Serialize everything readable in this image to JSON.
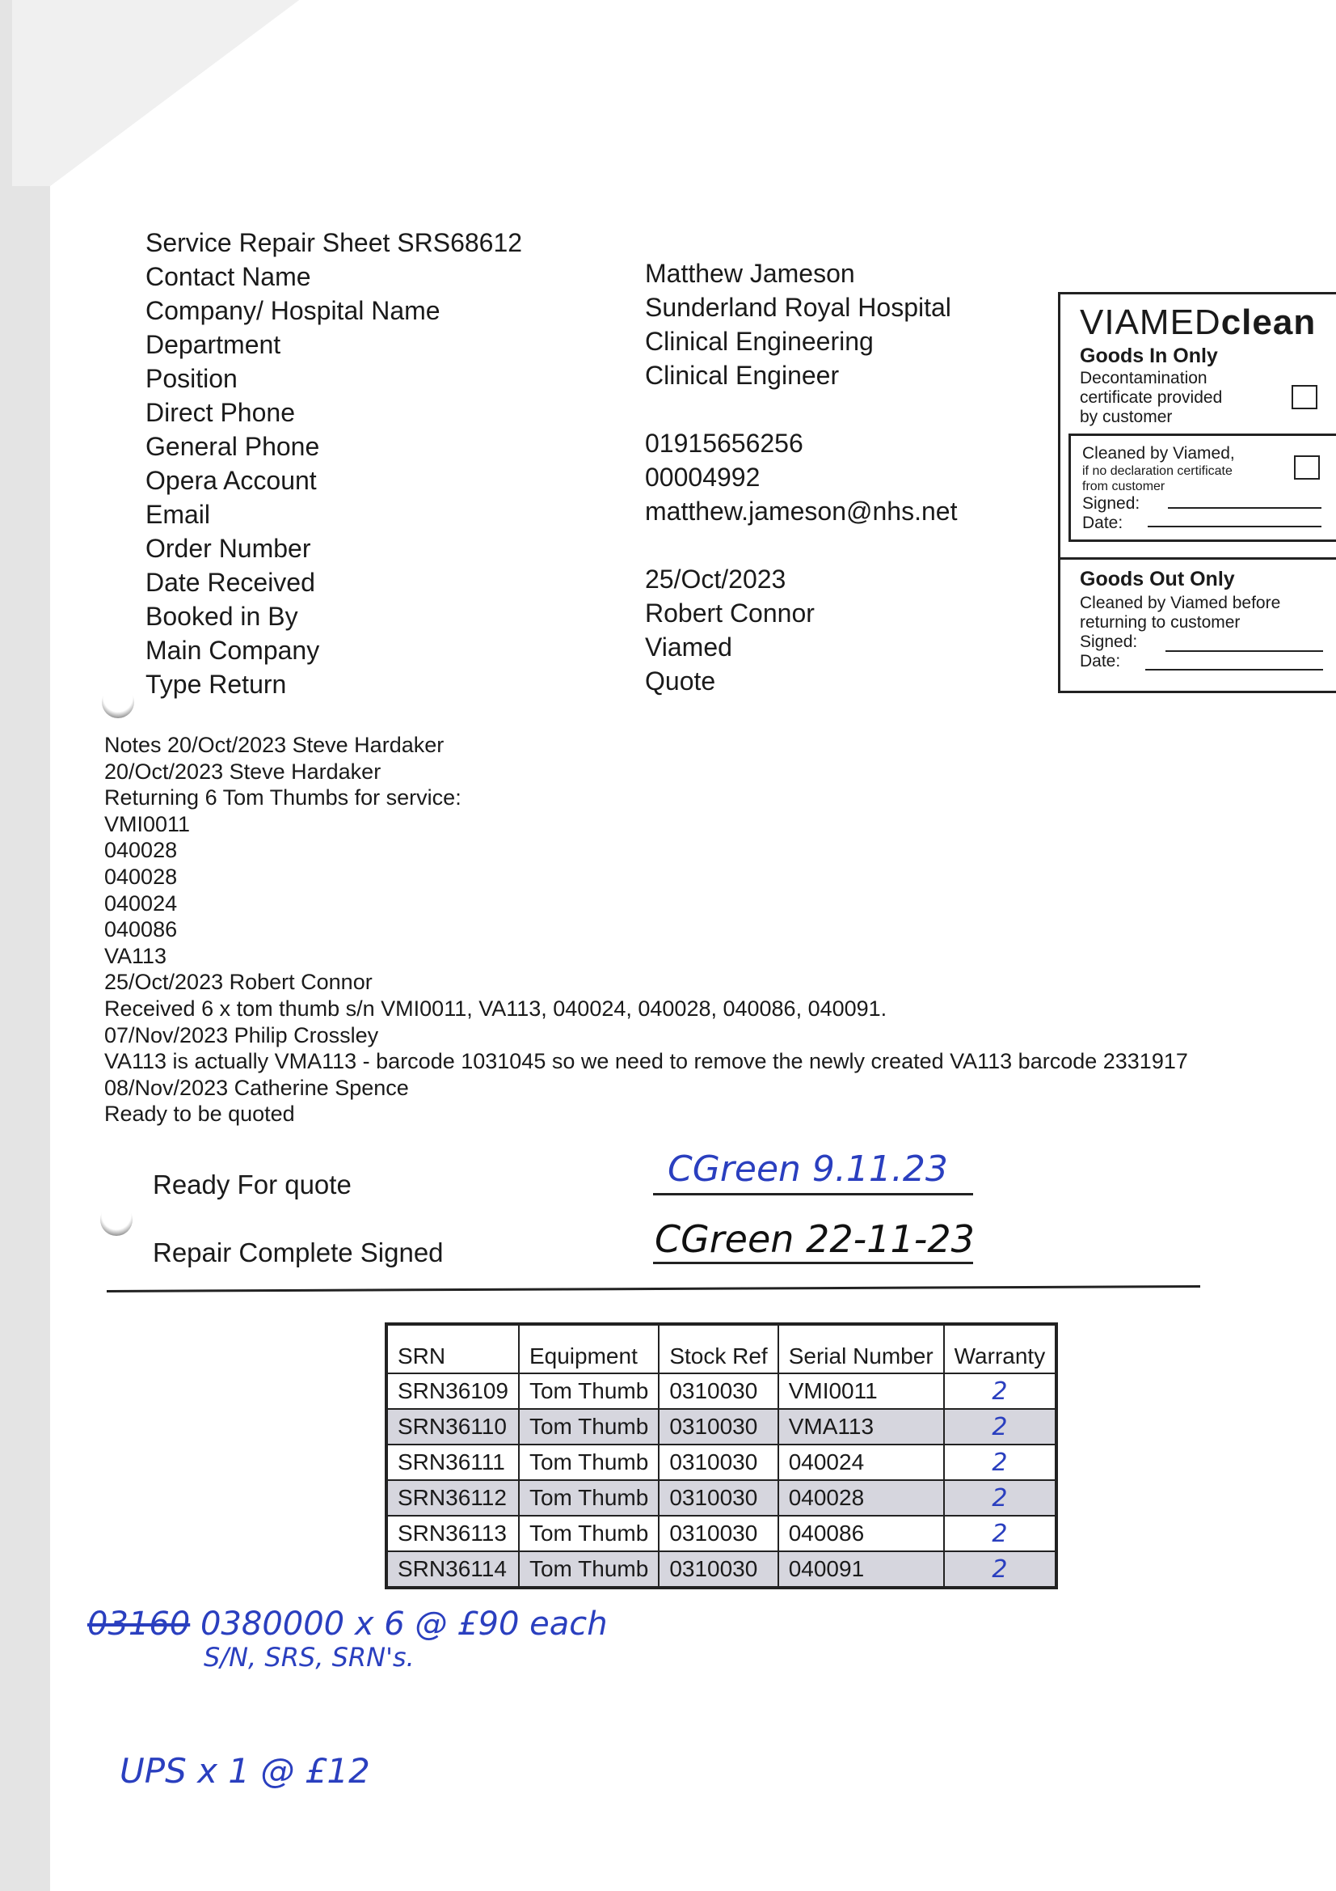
{
  "header": {
    "title": "Service Repair Sheet SRS68612"
  },
  "fields": [
    {
      "label": "Contact Name",
      "value": "Matthew Jameson"
    },
    {
      "label": "Company/ Hospital Name",
      "value": "Sunderland Royal Hospital"
    },
    {
      "label": "Department",
      "value": "Clinical Engineering"
    },
    {
      "label": "Position",
      "value": "Clinical Engineer"
    },
    {
      "label": "Direct Phone",
      "value": ""
    },
    {
      "label": "General Phone",
      "value": "01915656256"
    },
    {
      "label": "Opera Account",
      "value": "00004992"
    },
    {
      "label": "Email",
      "value": "matthew.jameson@nhs.net"
    },
    {
      "label": "Order Number",
      "value": ""
    },
    {
      "label": "Date Received",
      "value": "25/Oct/2023"
    },
    {
      "label": "Booked in By",
      "value": "Robert Connor"
    },
    {
      "label": "Main Company",
      "value": "Viamed"
    },
    {
      "label": "Type Return",
      "value": "Quote"
    }
  ],
  "clean_box": {
    "logo_light": "VIAMED",
    "logo_bold": "clean",
    "goods_in_title": "Goods In Only",
    "goods_in_text": [
      "Decontamination",
      "certificate provided",
      "by customer"
    ],
    "cleaned_line1": "Cleaned by Viamed,",
    "cleaned_line2": "if no declaration certificate",
    "cleaned_line3": "from customer",
    "signed_label": "Signed:",
    "date_label": "Date:",
    "goods_out_title": "Goods Out Only",
    "goods_out_text": [
      "Cleaned by Viamed before",
      "returning to customer"
    ],
    "signed_label_2": "Signed:",
    "date_label_2": "Date:"
  },
  "notes": [
    "Notes 20/Oct/2023 Steve Hardaker",
    "20/Oct/2023 Steve Hardaker",
    "Returning 6 Tom Thumbs for service:",
    "VMI0011",
    "040028",
    "040028",
    "040024",
    "040086",
    "VA113",
    "25/Oct/2023 Robert Connor",
    "Received 6 x tom thumb s/n VMI0011, VA113, 040024, 040028, 040086, 040091.",
    "07/Nov/2023 Philip Crossley",
    "VA113 is actually VMA113 - barcode 1031045 so we need to remove the newly created VA113 barcode 2331917",
    "08/Nov/2023 Catherine Spence",
    "Ready to be quoted"
  ],
  "signoff": {
    "ready_label": "Ready For quote",
    "ready_signature": "CGreen 9.11.23",
    "complete_label": "Repair Complete Signed",
    "complete_signature": "CGreen 22-11-23"
  },
  "table": {
    "headers": [
      "SRN",
      "Equipment",
      "Stock Ref",
      "Serial Number",
      "Warranty"
    ],
    "rows": [
      [
        "SRN36109",
        "Tom Thumb",
        "0310030",
        "VMI0011",
        "2"
      ],
      [
        "SRN36110",
        "Tom Thumb",
        "0310030",
        "VMA113",
        "2"
      ],
      [
        "SRN36111",
        "Tom Thumb",
        "0310030",
        "040024",
        "2"
      ],
      [
        "SRN36112",
        "Tom Thumb",
        "0310030",
        "040028",
        "2"
      ],
      [
        "SRN36113",
        "Tom Thumb",
        "0310030",
        "040086",
        "2"
      ],
      [
        "SRN36114",
        "Tom Thumb",
        "0310030",
        "040091",
        "2"
      ]
    ]
  },
  "handwritten": {
    "line1_struck": "03160",
    "line1": "0380000 x 6  @ £90 each",
    "line2": "S/N, SRS, SRN's.",
    "line3": "UPS x 1  @ £12"
  },
  "colors": {
    "ink": "#2a3fbf",
    "row_shade": "#d6d6de"
  }
}
